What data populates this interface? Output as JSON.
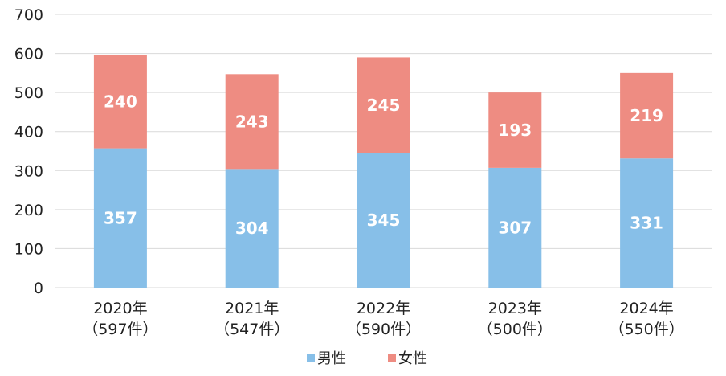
{
  "chart_data": {
    "type": "bar",
    "stacked": true,
    "categories": [
      "2020年",
      "2021年",
      "2022年",
      "2023年",
      "2024年"
    ],
    "category_sublabels": [
      "（597件）",
      "（547件）",
      "（590件）",
      "（500件）",
      "（550件）"
    ],
    "series": [
      {
        "name": "男性",
        "color": "#87bfe8",
        "values": [
          357,
          304,
          345,
          307,
          331
        ]
      },
      {
        "name": "女性",
        "color": "#ee8c82",
        "values": [
          240,
          243,
          245,
          193,
          219
        ]
      }
    ],
    "y_ticks": [
      0,
      100,
      200,
      300,
      400,
      500,
      600,
      700
    ],
    "ylim": [
      0,
      700
    ],
    "grid": true,
    "grid_color": "#d9d9d9",
    "data_labels": true,
    "legend_position": "bottom"
  }
}
